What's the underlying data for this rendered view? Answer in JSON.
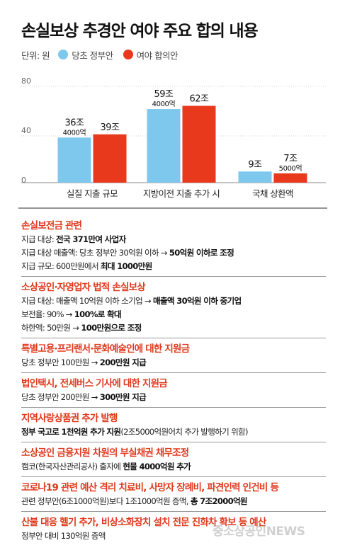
{
  "title": "손실보상 추경안 여야 주요 합의 내용",
  "legend": {
    "unit": "단위: 원",
    "items": [
      {
        "label": "당초 정부안",
        "color": "#7ec8ee"
      },
      {
        "label": "여야 합의안",
        "color": "#e8391d"
      }
    ]
  },
  "chart_data": {
    "type": "bar",
    "categories": [
      "실질 지출 규모",
      "지방이전 지출 추가 시",
      "국채 상환액"
    ],
    "ylim": [
      0,
      80
    ],
    "yticks": [
      "0",
      "40",
      "80"
    ],
    "grid": false,
    "legend_position": "top-left",
    "series": [
      {
        "name": "당초 정부안",
        "color": "#7ec8ee",
        "values": [
          36.4,
          59.4,
          9
        ],
        "labels": [
          "36조",
          "59조",
          "9조"
        ],
        "sublabels": [
          "4000억",
          "4000억",
          ""
        ]
      },
      {
        "name": "여야 합의안",
        "color": "#e8391d",
        "values": [
          39,
          62,
          7.5
        ],
        "labels": [
          "39조",
          "62조",
          "7조"
        ],
        "sublabels": [
          "",
          "",
          "5000억"
        ]
      }
    ]
  },
  "sections": [
    {
      "title": "손실보전금 관련",
      "lines": [
        [
          {
            "t": "지급 대상: "
          },
          {
            "t": "전국 371만여 사업자",
            "b": true
          }
        ],
        [
          {
            "t": "지급 대상 매출액: 당초 정부안 30억원 이하 → "
          },
          {
            "t": "50억원 이하로 조정",
            "b": true
          }
        ],
        [
          {
            "t": "지급 규모: 600만원에서 "
          },
          {
            "t": "최대 1000만원",
            "b": true
          }
        ]
      ]
    },
    {
      "title": "소상공인·자영업자 법적 손실보상",
      "lines": [
        [
          {
            "t": "지급 대상: 매출액 10억원 이하 소기업 → "
          },
          {
            "t": "매출액 30억원 이하 중기업",
            "b": true
          }
        ],
        [
          {
            "t": "보전율: 90% → "
          },
          {
            "t": "100%로 확대",
            "b": true
          }
        ],
        [
          {
            "t": "하한액: 50만원 → "
          },
          {
            "t": "100만원으로 조정",
            "b": true
          }
        ]
      ]
    },
    {
      "title": "특별고용·프리랜서·문화예술인에 대한 지원금",
      "lines": [
        [
          {
            "t": "당초 정부안 100만원 → "
          },
          {
            "t": "200만원 지급",
            "b": true
          }
        ]
      ]
    },
    {
      "title": "법인택시, 전세버스 기사에 대한 지원금",
      "lines": [
        [
          {
            "t": "당초 정부안 200만원 → "
          },
          {
            "t": "300만원 지급",
            "b": true
          }
        ]
      ]
    },
    {
      "title": "지역사랑상품권 추가 발행",
      "lines": [
        [
          {
            "t": "정부 국고로 1천억원 추가 지원",
            "b": true
          },
          {
            "t": "(2조5000억원어치 추가 발행하기 위함)"
          }
        ]
      ]
    },
    {
      "title": "소상공인 금융지원 차원의 부실채권 채무조정",
      "lines": [
        [
          {
            "t": "캠코(한국자산관리공사) 출자에 "
          },
          {
            "t": "현물 4000억원 추가",
            "b": true
          }
        ]
      ]
    },
    {
      "title": "코로나19 관련 예산 격리 치료비, 사망자 장례비, 파견인력 인건비 등",
      "lines": [
        [
          {
            "t": "관련 정부안(6조1000억원)보다 1조1000억원 증액, "
          },
          {
            "t": "총 7조2000억원",
            "b": true
          }
        ]
      ]
    },
    {
      "title": "산불 대응 헬기 추가, 비상소화장치 설치 전문 진화차 확보 등 예산",
      "lines": [
        [
          {
            "t": "정부안 대비 130억원 증액"
          }
        ]
      ]
    }
  ],
  "watermark": "중소상공인NEWS"
}
